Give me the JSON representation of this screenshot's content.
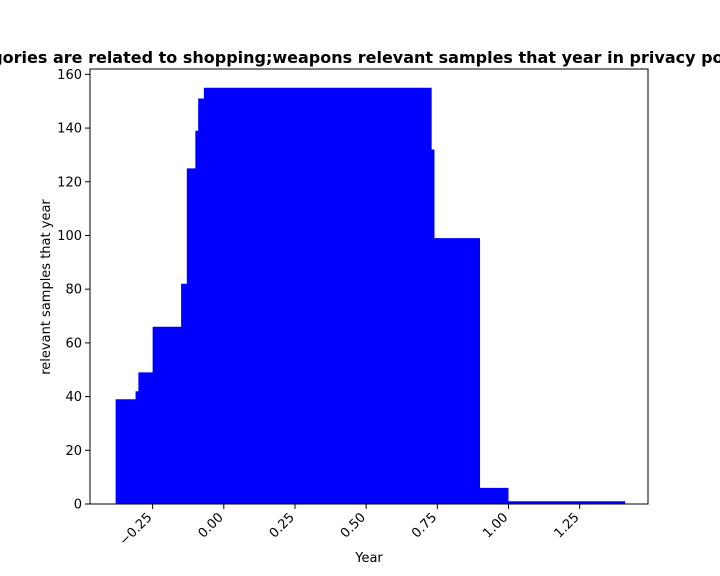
{
  "chart_data": {
    "type": "area",
    "title": "Categories are related to shopping;weapons relevant samples that year in privacy policies",
    "xlabel": "Year",
    "ylabel": "relevant samples that year",
    "xlim": [
      -0.47,
      1.49
    ],
    "ylim": [
      0,
      162
    ],
    "x_ticks": [
      -0.25,
      0.0,
      0.25,
      0.5,
      0.75,
      1.0,
      1.25
    ],
    "x_tick_labels": [
      "−0.25",
      "0.00",
      "0.25",
      "0.50",
      "0.75",
      "1.00",
      "1.25"
    ],
    "y_ticks": [
      0,
      20,
      40,
      60,
      80,
      100,
      120,
      140,
      160
    ],
    "y_tick_labels": [
      "0",
      "20",
      "40",
      "60",
      "80",
      "100",
      "120",
      "140",
      "160"
    ],
    "grid": false,
    "color": "#0000ff",
    "series": [
      {
        "x": [
          -0.38,
          -0.31,
          -0.3,
          -0.25,
          -0.15,
          -0.13,
          -0.1,
          -0.09,
          -0.07,
          0.0,
          0.25,
          0.5,
          0.72,
          0.73,
          0.74,
          0.88,
          0.9,
          1.0,
          1.25,
          1.41
        ],
        "values": [
          39,
          42,
          49,
          66,
          82,
          125,
          139,
          151,
          155,
          155,
          155,
          155,
          155,
          132,
          99,
          99,
          6,
          1,
          1,
          1
        ]
      }
    ]
  }
}
